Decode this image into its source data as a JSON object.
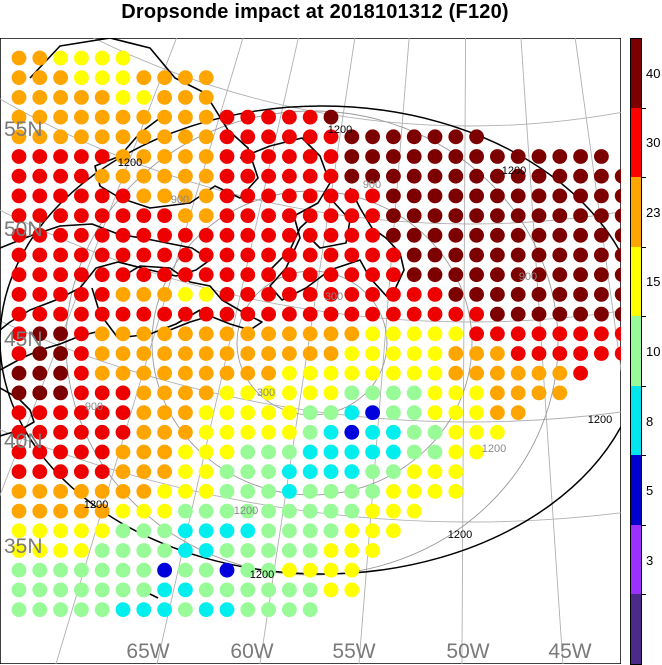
{
  "title": "Dropsonde impact at 2018101312 (F120)",
  "map": {
    "lat_labels": [
      "55N",
      "50N",
      "45N",
      "40N",
      "35N"
    ],
    "lon_labels": [
      "65W",
      "60W",
      "55W",
      "50W",
      "45W"
    ],
    "range_ring_labels": [
      "300",
      "300",
      "900",
      "900",
      "900",
      "900",
      "1200",
      "1200",
      "1200",
      "1200",
      "1200"
    ],
    "dot_field": {
      "rows": [
        "OOYYYY",
        "OOOYYYOOOO",
        "OOOOOYYOOO",
        "OOOOOOOOOORRRRRD",
        "OOOOOOOOOORRRRRRDDDDDDD",
        "RRRRROOOOORRRRRRDDDDDDDDDDDDD",
        "RRRROOOOOORRRRRRDDDDDDDDDDDDDDDD",
        "RRRRRROOOORRRRRRRRDDDDDDDDDDDDDD",
        "RRRRRRRROORRRRRRRRDDDDDDDDDDDDDD",
        "RRRRRRRRRRRRRRRRRRDDDDDDDDDDDDDD",
        "RRRRRRRRRRRRRRRRRRRDDDDDDDDDDDDD",
        "RRRRRRRRRRRRRRRRRRRDDDDDDDDDDDDD",
        "RRRRROOOYYRRRRRRRRRRRDDDDDDDDDDD",
        "RRRRRRRRRRRRRRRRRRRRRRRDDDDDDDDD",
        "RDDROOOOOOOOOOOOOYYYYYRRRRRRRRR",
        "RDDROOOOOOOOOOOOYYYYYOOORRRRRR",
        "DDDROOOOOOOOOYYYYYYYYOOOOOOR",
        "DDDRRROOOOYYYYYYGGGGYYYOOOO",
        "RRRRRROOOYYYYYGGCBGGYYYOO",
        "RRRRRROOOYYYYYGCBCCGGYYY",
        "RRRRROOOYYYGGGCCCCCGGYY",
        "RRRRROOOYYGGGCCCCGGYYY",
        "OOOOOOOYYYGGGCGGGGYYYY",
        "OOOOOYYYGGGGGGGGGYYY",
        "YYYYYGGGCCCCGGGGYYY",
        "YYYYGGGGCCGGGGGYYY",
        "GGGGGGGBGGBGGYYYY",
        "GGGGGGGCCGGGGGGYY",
        "GGGGGCCCGCCGGGG"
      ]
    },
    "colors": {
      "ocean_grid": "#aaaaaa",
      "coast": "#000000",
      "ring_inner": "#9a9a9a",
      "ring_outer": "#000000"
    }
  },
  "colorbar": {
    "labels": [
      "40",
      "30",
      "23",
      "15",
      "10",
      "8",
      "5",
      "3"
    ],
    "colors": [
      "#7d0000",
      "#ff0000",
      "#ffa500",
      "#ffff00",
      "#98fb98",
      "#00e5ee",
      "#0000cd",
      "#9b30ff",
      "#4b2a8a"
    ]
  },
  "legend_colors": {
    "D": "#7d0000",
    "R": "#ee0000",
    "O": "#ffa500",
    "Y": "#ffff00",
    "G": "#98fb98",
    "C": "#00eeee",
    "B": "#0000dd"
  }
}
